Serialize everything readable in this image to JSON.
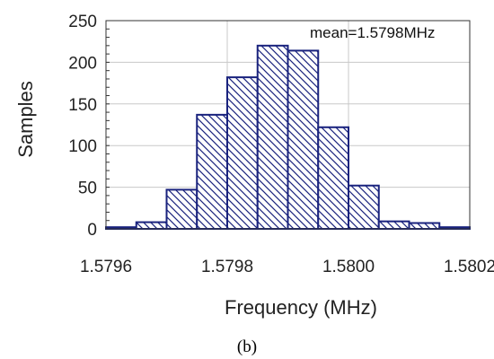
{
  "chart_data": {
    "type": "bar",
    "xlabel": "Frequency (MHz)",
    "ylabel": "Samples",
    "xlim": [
      1.5796,
      1.5802
    ],
    "ylim": [
      0,
      250
    ],
    "x_tick_labels": [
      "1.5796",
      "1.5798",
      "1.5800",
      "1.5802"
    ],
    "y_tick_labels": [
      "0",
      "50",
      "100",
      "150",
      "200",
      "250"
    ],
    "bin_edges": [
      1.5796,
      1.57965,
      1.5797,
      1.57975,
      1.5798,
      1.57985,
      1.5799,
      1.57995,
      1.58,
      1.58005,
      1.5801,
      1.58015,
      1.5802
    ],
    "values": [
      2,
      8,
      47,
      137,
      182,
      220,
      214,
      122,
      52,
      9,
      7,
      2
    ],
    "annotation": "mean=1.5798MHz",
    "grid": true,
    "bar_fill": "hatched",
    "bar_color": "#1a237e"
  },
  "caption": "(b)"
}
